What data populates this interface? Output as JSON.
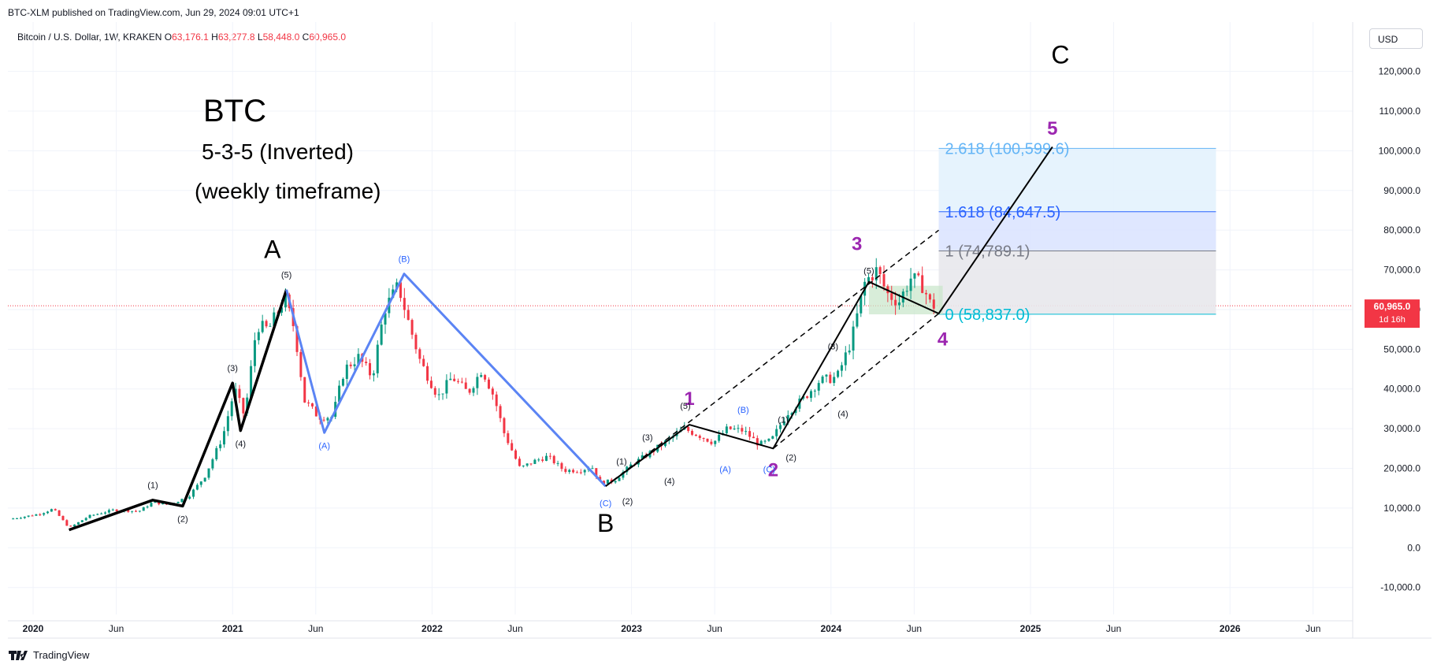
{
  "header": {
    "published": "BTC-XLM published on TradingView.com, Jun 29, 2024 09:01 UTC+1",
    "symbol": "Bitcoin / U.S. Dollar, 1W, KRAKEN",
    "ohlc": {
      "O": "63,176.1",
      "H": "63,277.8",
      "L": "58,448.0",
      "C": "60,965.0"
    },
    "currency": "USD"
  },
  "footer": {
    "brand": "TradingView"
  },
  "annotations": {
    "title": "BTC",
    "subtitle1": "5-3-5 (Inverted)",
    "subtitle2": "(weekly timeframe)"
  },
  "price_tag": {
    "value": "60,965.0",
    "countdown": "1d 16h",
    "color": "#f23645"
  },
  "colors": {
    "up": "#089981",
    "down": "#f23645",
    "wave_black": "#000000",
    "wave_blue": "#5b84f4",
    "wave_purple": "#9c27b0",
    "minor_blue": "#2962ff"
  },
  "chart_data": {
    "type": "candlestick",
    "x_ticks": [
      {
        "label": "2020",
        "date": 2020.0,
        "bold": true
      },
      {
        "label": "Jun",
        "date": 2020.417
      },
      {
        "label": "2021",
        "date": 2021.0,
        "bold": true
      },
      {
        "label": "Jun",
        "date": 2021.417
      },
      {
        "label": "2022",
        "date": 2022.0,
        "bold": true
      },
      {
        "label": "Jun",
        "date": 2022.417
      },
      {
        "label": "2023",
        "date": 2023.0,
        "bold": true
      },
      {
        "label": "Jun",
        "date": 2023.417
      },
      {
        "label": "2024",
        "date": 2024.0,
        "bold": true
      },
      {
        "label": "Jun",
        "date": 2024.417
      },
      {
        "label": "2025",
        "date": 2025.0,
        "bold": true
      },
      {
        "label": "Jun",
        "date": 2025.417
      },
      {
        "label": "2026",
        "date": 2026.0,
        "bold": true
      },
      {
        "label": "Jun",
        "date": 2026.417
      }
    ],
    "y_ticks": [
      "120,000.0",
      "110,000.0",
      "100,000.0",
      "90,000.0",
      "80,000.0",
      "70,000.0",
      "60,000.0",
      "50,000.0",
      "40,000.0",
      "30,000.0",
      "20,000.0",
      "10,000.0",
      "0.0",
      "-10,000.0"
    ],
    "ylim": [
      -15000,
      130000
    ],
    "last_price": 60965,
    "price_path": [
      [
        2019.9,
        7200
      ],
      [
        2020.05,
        8500
      ],
      [
        2020.12,
        9800
      ],
      [
        2020.2,
        5000
      ],
      [
        2020.3,
        8000
      ],
      [
        2020.42,
        9500
      ],
      [
        2020.55,
        9200
      ],
      [
        2020.62,
        11500
      ],
      [
        2020.7,
        10800
      ],
      [
        2020.8,
        13000
      ],
      [
        2020.88,
        18000
      ],
      [
        2020.97,
        28000
      ],
      [
        2021.03,
        40000
      ],
      [
        2021.08,
        33000
      ],
      [
        2021.14,
        56000
      ],
      [
        2021.2,
        55000
      ],
      [
        2021.28,
        63000
      ],
      [
        2021.33,
        55000
      ],
      [
        2021.38,
        37000
      ],
      [
        2021.45,
        33000
      ],
      [
        2021.52,
        33000
      ],
      [
        2021.58,
        45000
      ],
      [
        2021.65,
        48000
      ],
      [
        2021.72,
        43000
      ],
      [
        2021.78,
        60000
      ],
      [
        2021.85,
        66000
      ],
      [
        2021.9,
        57000
      ],
      [
        2021.96,
        47000
      ],
      [
        2022.05,
        38000
      ],
      [
        2022.12,
        43000
      ],
      [
        2022.2,
        39000
      ],
      [
        2022.27,
        45000
      ],
      [
        2022.33,
        38000
      ],
      [
        2022.38,
        29000
      ],
      [
        2022.46,
        20000
      ],
      [
        2022.54,
        22000
      ],
      [
        2022.6,
        23000
      ],
      [
        2022.68,
        19500
      ],
      [
        2022.76,
        19500
      ],
      [
        2022.82,
        20500
      ],
      [
        2022.86,
        16500
      ],
      [
        2022.93,
        16800
      ],
      [
        2023.02,
        21000
      ],
      [
        2023.1,
        23500
      ],
      [
        2023.2,
        27000
      ],
      [
        2023.28,
        30000
      ],
      [
        2023.35,
        28500
      ],
      [
        2023.43,
        26500
      ],
      [
        2023.5,
        30000
      ],
      [
        2023.58,
        29500
      ],
      [
        2023.66,
        26000
      ],
      [
        2023.72,
        27000
      ],
      [
        2023.8,
        34000
      ],
      [
        2023.88,
        37500
      ],
      [
        2023.96,
        42000
      ],
      [
        2024.05,
        43000
      ],
      [
        2024.12,
        52000
      ],
      [
        2024.19,
        67000
      ],
      [
        2024.25,
        70000
      ],
      [
        2024.3,
        64000
      ],
      [
        2024.36,
        62000
      ],
      [
        2024.42,
        68000
      ],
      [
        2024.48,
        66000
      ],
      [
        2024.52,
        61000
      ]
    ],
    "waves": {
      "black_A": [
        [
          2020.18,
          4500
        ],
        [
          2020.6,
          12000
        ],
        [
          2020.75,
          10500
        ],
        [
          2021.0,
          41500
        ],
        [
          2021.04,
          29500
        ],
        [
          2021.27,
          65000
        ]
      ],
      "blue_B": [
        [
          2021.27,
          65000
        ],
        [
          2021.46,
          29000
        ],
        [
          2021.86,
          69000
        ],
        [
          2022.87,
          15500
        ]
      ],
      "black_C": [
        [
          2022.87,
          15500
        ],
        [
          2023.29,
          31000
        ],
        [
          2023.71,
          25000
        ],
        [
          2024.19,
          67000
        ],
        [
          2024.54,
          59000
        ],
        [
          2025.11,
          101000
        ]
      ]
    },
    "channel": {
      "upper": [
        [
          2022.87,
          15500
        ],
        [
          2024.54,
          80000
        ]
      ],
      "lower": [
        [
          2023.71,
          25000
        ],
        [
          2024.54,
          59000
        ]
      ]
    },
    "fib": {
      "x_start": 2024.54,
      "x_end": 2025.93,
      "levels": [
        {
          "ratio": "2.618",
          "value": 100599.6,
          "label": "2.618 (100,599.6)",
          "color": "#64b5f6"
        },
        {
          "ratio": "1.618",
          "value": 84647.5,
          "label": "1.618 (84,647.5)",
          "color": "#2962ff"
        },
        {
          "ratio": "1",
          "value": 74789.1,
          "label": "1 (74,789.1)",
          "color": "#787b86"
        },
        {
          "ratio": "0",
          "value": 58837.0,
          "label": "0 (58,837.0)",
          "color": "#00bcd4"
        }
      ]
    },
    "consolidation_box": {
      "x0": 2024.19,
      "x1": 2024.56,
      "y0": 58800,
      "y1": 66000
    },
    "labels": [
      {
        "text": "A",
        "x": 2021.2,
        "y": 73000,
        "size": 32,
        "color": "#000000"
      },
      {
        "text": "B",
        "x": 2022.87,
        "y": 4000,
        "size": 32,
        "color": "#000000"
      },
      {
        "text": "C",
        "x": 2025.15,
        "y": 122000,
        "size": 32,
        "color": "#000000"
      },
      {
        "text": "1",
        "x": 2023.29,
        "y": 36000,
        "size": 24,
        "color": "#9c27b0"
      },
      {
        "text": "2",
        "x": 2023.71,
        "y": 18000,
        "size": 24,
        "color": "#9c27b0"
      },
      {
        "text": "3",
        "x": 2024.13,
        "y": 75000,
        "size": 24,
        "color": "#9c27b0"
      },
      {
        "text": "4",
        "x": 2024.56,
        "y": 51000,
        "size": 24,
        "color": "#9c27b0"
      },
      {
        "text": "5",
        "x": 2025.11,
        "y": 104000,
        "size": 24,
        "color": "#9c27b0"
      },
      {
        "text": "(1)",
        "x": 2020.6,
        "y": 15000,
        "size": 11,
        "color": "#131722"
      },
      {
        "text": "(2)",
        "x": 2020.75,
        "y": 6500,
        "size": 11,
        "color": "#131722"
      },
      {
        "text": "(3)",
        "x": 2021.0,
        "y": 44500,
        "size": 11,
        "color": "#131722"
      },
      {
        "text": "(4)",
        "x": 2021.04,
        "y": 25500,
        "size": 11,
        "color": "#131722"
      },
      {
        "text": "(5)",
        "x": 2021.27,
        "y": 68000,
        "size": 11,
        "color": "#131722"
      },
      {
        "text": "(A)",
        "x": 2021.46,
        "y": 25000,
        "size": 11,
        "color": "#2962ff"
      },
      {
        "text": "(B)",
        "x": 2021.86,
        "y": 72000,
        "size": 11,
        "color": "#2962ff"
      },
      {
        "text": "(C)",
        "x": 2022.87,
        "y": 10500,
        "size": 11,
        "color": "#2962ff"
      },
      {
        "text": "(1)",
        "x": 2022.95,
        "y": 21000,
        "size": 11,
        "color": "#131722"
      },
      {
        "text": "(2)",
        "x": 2022.98,
        "y": 11000,
        "size": 11,
        "color": "#131722"
      },
      {
        "text": "(3)",
        "x": 2023.08,
        "y": 27000,
        "size": 11,
        "color": "#131722"
      },
      {
        "text": "(4)",
        "x": 2023.19,
        "y": 16000,
        "size": 11,
        "color": "#131722"
      },
      {
        "text": "(5)",
        "x": 2023.27,
        "y": 35000,
        "size": 11,
        "color": "#131722"
      },
      {
        "text": "(A)",
        "x": 2023.47,
        "y": 19000,
        "size": 11,
        "color": "#2962ff"
      },
      {
        "text": "(B)",
        "x": 2023.56,
        "y": 34000,
        "size": 11,
        "color": "#2962ff"
      },
      {
        "text": "(C)",
        "x": 2023.69,
        "y": 19000,
        "size": 11,
        "color": "#2962ff"
      },
      {
        "text": "(1)",
        "x": 2023.76,
        "y": 31500,
        "size": 11,
        "color": "#131722"
      },
      {
        "text": "(2)",
        "x": 2023.8,
        "y": 22000,
        "size": 11,
        "color": "#131722"
      },
      {
        "text": "(3)",
        "x": 2024.01,
        "y": 50000,
        "size": 11,
        "color": "#131722"
      },
      {
        "text": "(4)",
        "x": 2024.06,
        "y": 33000,
        "size": 11,
        "color": "#131722"
      },
      {
        "text": "(5)",
        "x": 2024.19,
        "y": 69000,
        "size": 11,
        "color": "#131722"
      }
    ]
  }
}
